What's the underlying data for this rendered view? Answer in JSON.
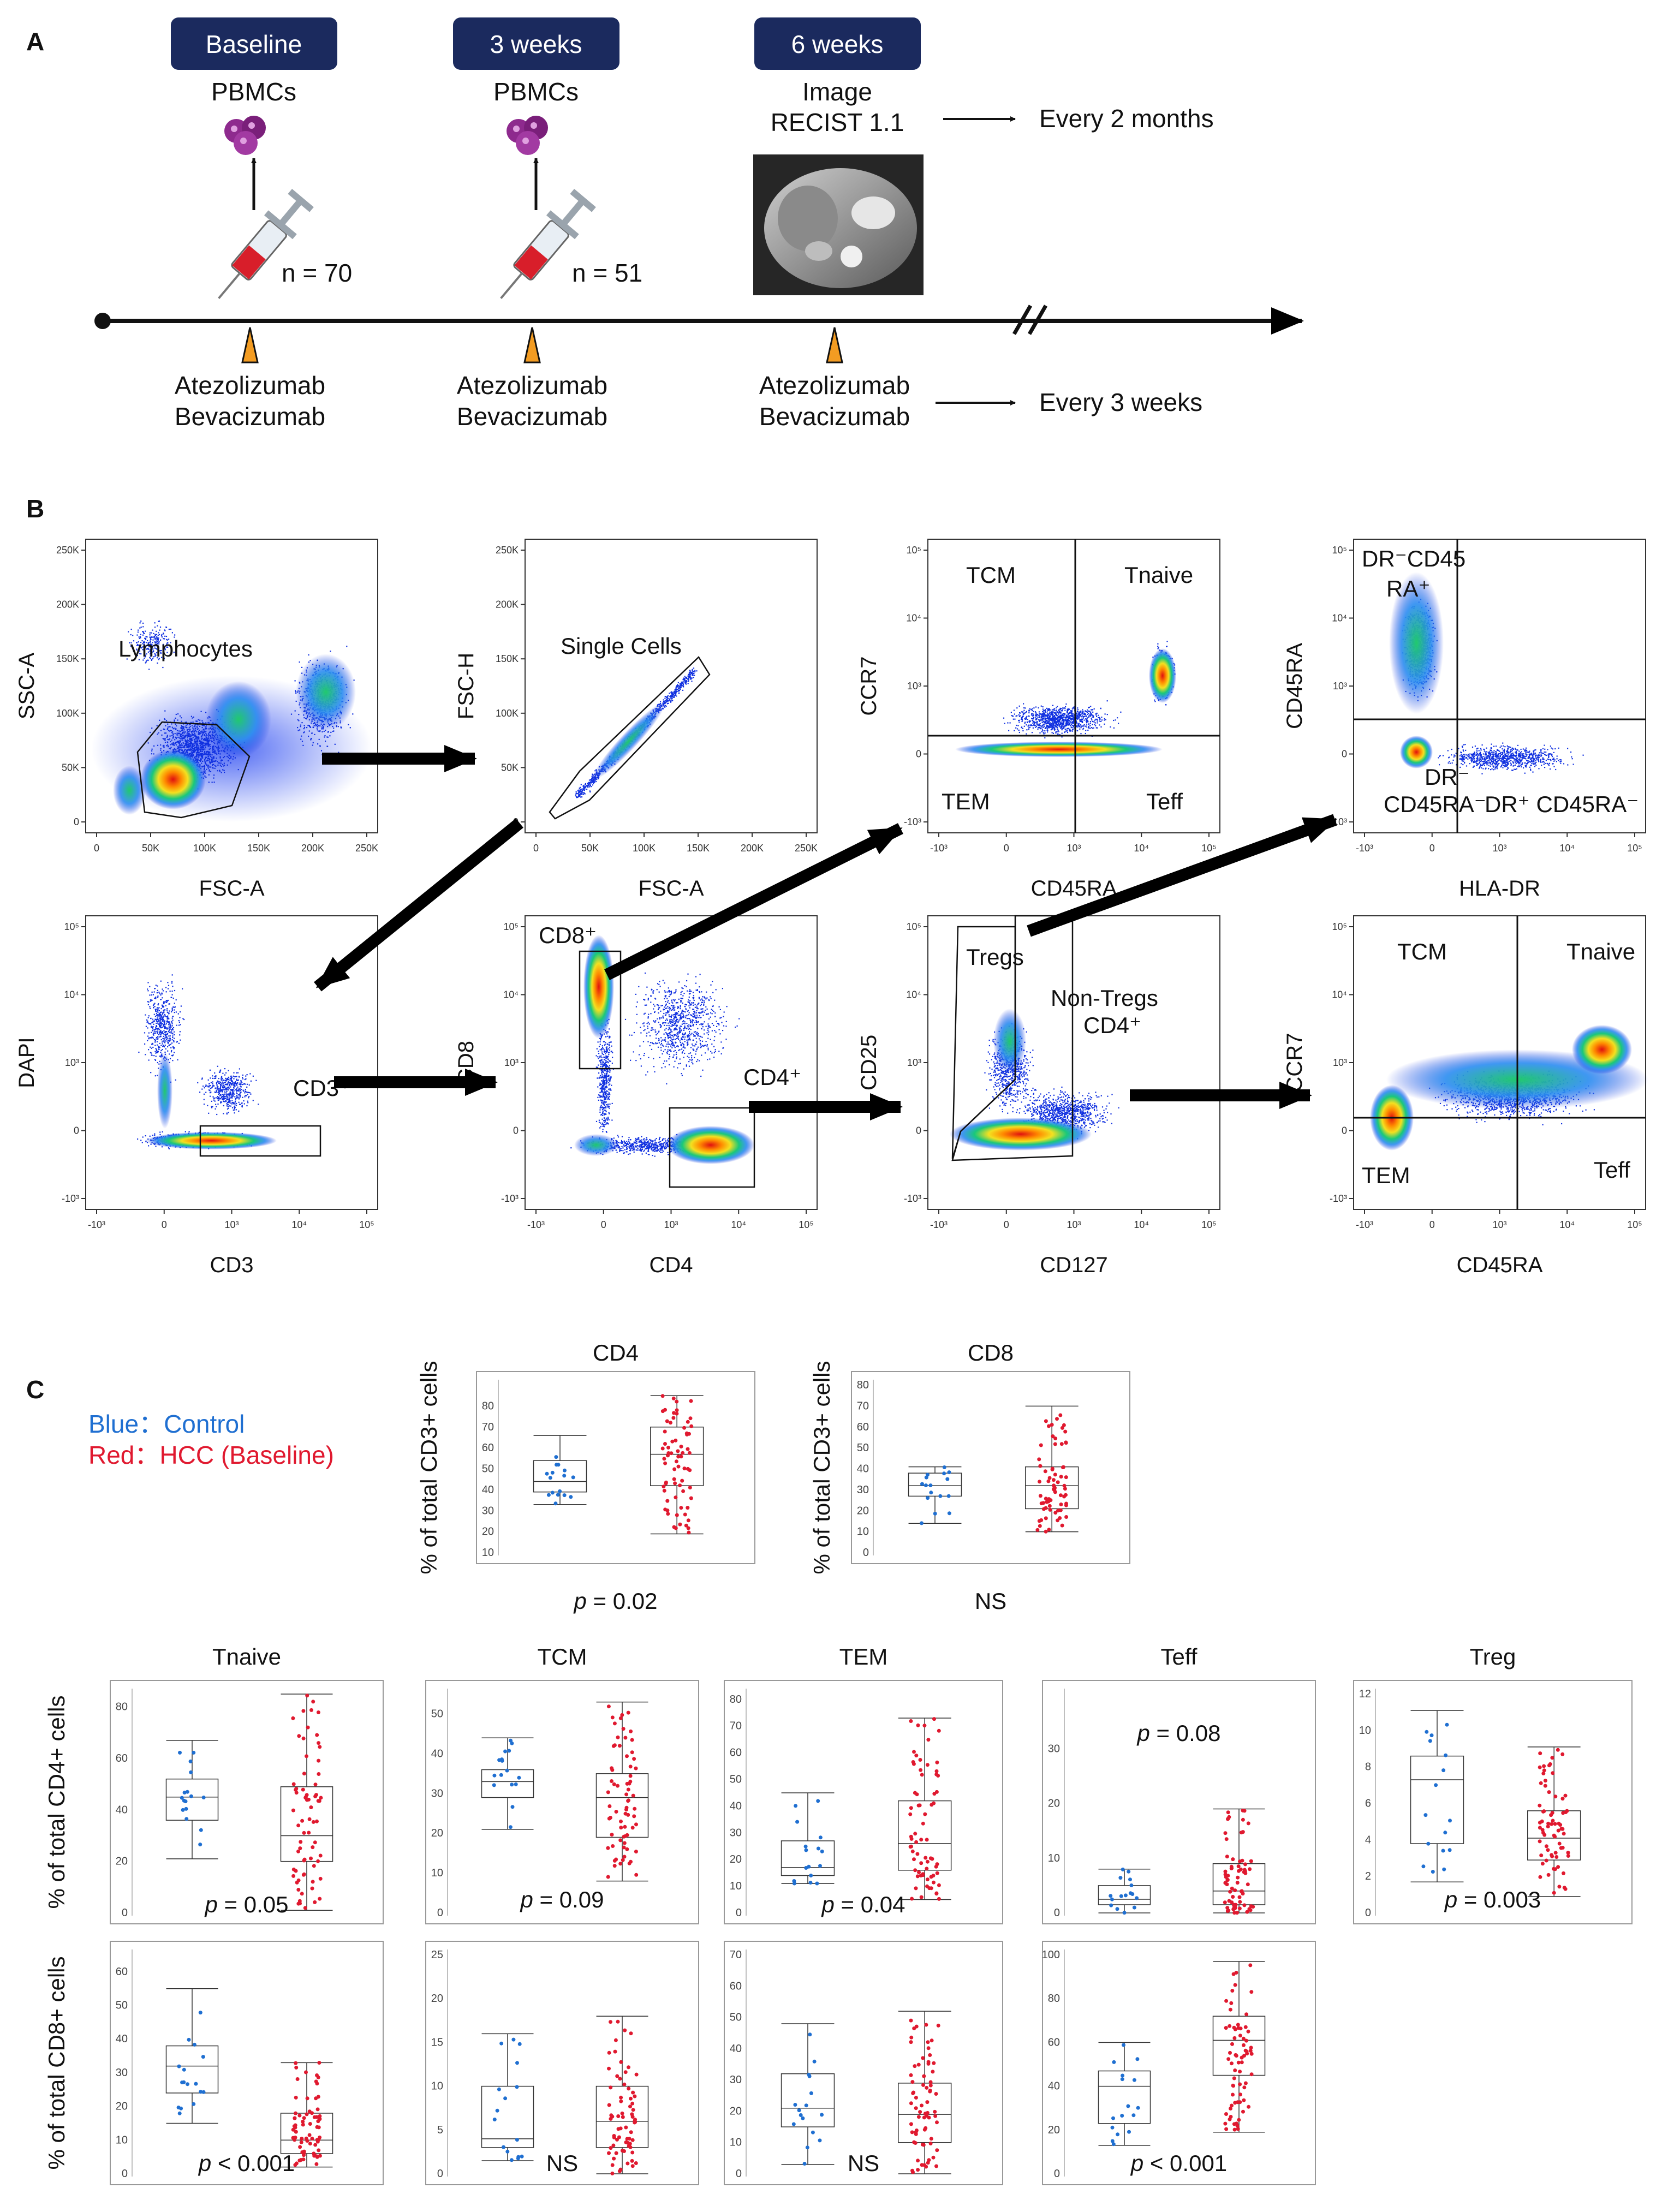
{
  "colors": {
    "navy": "#1b2a5e",
    "orange": "#f39c22",
    "control": "#1f6fd1",
    "hcc": "#e0192f",
    "flow_blue": "#1030e0"
  },
  "panel_a": {
    "letter": "A",
    "timepoints": [
      {
        "badge": "Baseline",
        "sample": "PBMCs",
        "n": "n = 70",
        "drug1": "Atezolizumab",
        "drug2": "Bevacizumab"
      },
      {
        "badge": "3 weeks",
        "sample": "PBMCs",
        "n": "n = 51",
        "drug1": "Atezolizumab",
        "drug2": "Bevacizumab"
      },
      {
        "badge": "6 weeks",
        "sample": "Image",
        "sample2": "RECIST 1.1",
        "drug1": "Atezolizumab",
        "drug2": "Bevacizumab"
      }
    ],
    "imaging_interval": "Every 2 months",
    "dosing_interval": "Every 3 weeks",
    "icons": [
      "cells-icon",
      "syringe-icon",
      "ct-scan-image",
      "triangle-marker-icon"
    ]
  },
  "panel_b": {
    "letter": "B",
    "plots": [
      {
        "x": "FSC-A",
        "y": "SSC-A",
        "gates": [
          "Lymphocytes"
        ],
        "xt": [
          "0",
          "50K",
          "100K",
          "150K",
          "200K",
          "250K"
        ],
        "yt": [
          "250K",
          "200K",
          "150K",
          "100K",
          "50K",
          "0"
        ]
      },
      {
        "x": "FSC-A",
        "y": "FSC-H",
        "gates": [
          "Single Cells"
        ],
        "xt": [
          "0",
          "50K",
          "100K",
          "150K",
          "200K",
          "250K"
        ],
        "yt": [
          "250K",
          "200K",
          "150K",
          "100K",
          "50K",
          "0"
        ]
      },
      {
        "x": "CD45RA",
        "y": "CCR7",
        "gates": [
          "TCM",
          "Tnaive",
          "TEM",
          "Teff"
        ]
      },
      {
        "x": "HLA-DR",
        "y": "CD45RA",
        "gates": [
          "DR⁻CD45",
          "RA⁺",
          "DR⁻",
          "CD45RA⁻",
          "DR⁺ CD45RA⁻"
        ]
      },
      {
        "x": "CD3",
        "y": "DAPI",
        "gates": [
          "CD3⁺"
        ]
      },
      {
        "x": "CD4",
        "y": "CD8",
        "gates": [
          "CD8⁺",
          "CD4⁺"
        ]
      },
      {
        "x": "CD127",
        "y": "CD25",
        "gates": [
          "Tregs",
          "Non-Tregs",
          "CD4⁺"
        ]
      },
      {
        "x": "CD45RA",
        "y": "CCR7",
        "gates": [
          "TCM",
          "Tnaive",
          "TEM",
          "Teff"
        ]
      }
    ],
    "log_ticks_x": [
      "-10³",
      "0",
      "10³",
      "10⁴",
      "10⁵"
    ],
    "log_ticks_y": [
      "10⁵",
      "10⁴",
      "10³",
      "0",
      "-10³"
    ]
  },
  "panel_c": {
    "letter": "C",
    "legend": [
      "Blue：Control",
      "Red：HCC (Baseline)"
    ],
    "ylabel_cd3": "% of total CD3+ cells",
    "ylabel_cd4": "% of total CD4+ cells",
    "ylabel_cd8": "% of total CD8+ cells",
    "top_titles": [
      "CD4",
      "CD8"
    ],
    "row_titles": [
      "Tnaive",
      "TCM",
      "TEM",
      "Teff",
      "Treg"
    ],
    "p_prefix": "p",
    "stats": [
      {
        "sym": "p",
        "rest": " = 0.02"
      },
      {
        "sym": "",
        "rest": "NS"
      },
      {
        "sym": "p",
        "rest": " = 0.05"
      },
      {
        "sym": "p",
        "rest": " = 0.09"
      },
      {
        "sym": "p",
        "rest": " = 0.04"
      },
      {
        "sym": "p",
        "rest": " = 0.08"
      },
      {
        "sym": "p",
        "rest": " = 0.003"
      },
      {
        "sym": "p",
        "rest": " < 0.001"
      },
      {
        "sym": "",
        "rest": "NS"
      },
      {
        "sym": "",
        "rest": "NS"
      },
      {
        "sym": "p",
        "rest": " < 0.001"
      }
    ],
    "yticks_small": [
      [
        "80",
        "70",
        "60",
        "50",
        "40",
        "30",
        "20",
        "10"
      ],
      [
        "80",
        "70",
        "60",
        "50",
        "40",
        "30",
        "20",
        "10",
        "0"
      ],
      [
        "80",
        "60",
        "40",
        "20",
        "0"
      ],
      [
        "50",
        "40",
        "30",
        "20",
        "10",
        "0"
      ],
      [
        "80",
        "70",
        "60",
        "50",
        "40",
        "30",
        "20",
        "10",
        "0"
      ],
      [
        "30",
        "20",
        "10",
        "0"
      ],
      [
        "12",
        "10",
        "8",
        "6",
        "4",
        "2",
        "0"
      ],
      [
        "60",
        "50",
        "40",
        "30",
        "20",
        "10",
        "0"
      ],
      [
        "25",
        "20",
        "15",
        "10",
        "5",
        "0"
      ],
      [
        "70",
        "60",
        "50",
        "40",
        "30",
        "20",
        "10",
        "0"
      ],
      [
        "100",
        "80",
        "60",
        "40",
        "20",
        "0"
      ]
    ]
  },
  "chart_data": [
    {
      "type": "box",
      "title": "CD4",
      "ylabel": "% of total CD3+ cells",
      "groups": [
        {
          "name": "Control",
          "min": 33,
          "q1": 39,
          "median": 44,
          "q3": 54,
          "max": 66
        },
        {
          "name": "HCC (Baseline)",
          "min": 19,
          "q1": 42,
          "median": 57,
          "q3": 70,
          "max": 85
        }
      ]
    },
    {
      "type": "box",
      "title": "CD8",
      "ylabel": "% of total CD3+ cells",
      "groups": [
        {
          "name": "Control",
          "min": 14,
          "q1": 27,
          "median": 32,
          "q3": 38,
          "max": 41
        },
        {
          "name": "HCC (Baseline)",
          "min": 10,
          "q1": 21,
          "median": 32,
          "q3": 41,
          "max": 70
        }
      ]
    },
    {
      "type": "box",
      "title": "Tnaive",
      "ylabel": "% of total CD4+ cells",
      "groups": [
        {
          "name": "Control",
          "min": 21,
          "q1": 36,
          "median": 45,
          "q3": 52,
          "max": 67
        },
        {
          "name": "HCC (Baseline)",
          "min": 1,
          "q1": 20,
          "median": 30,
          "q3": 49,
          "max": 85
        }
      ]
    },
    {
      "type": "box",
      "title": "TCM",
      "ylabel": "% of total CD4+ cells",
      "groups": [
        {
          "name": "Control",
          "min": 21,
          "q1": 29,
          "median": 33,
          "q3": 36,
          "max": 44
        },
        {
          "name": "HCC (Baseline)",
          "min": 8,
          "q1": 19,
          "median": 29,
          "q3": 35,
          "max": 53
        }
      ]
    },
    {
      "type": "box",
      "title": "TEM",
      "ylabel": "% of total CD4+ cells",
      "groups": [
        {
          "name": "Control",
          "min": 11,
          "q1": 14,
          "median": 17,
          "q3": 27,
          "max": 45
        },
        {
          "name": "HCC (Baseline)",
          "min": 5,
          "q1": 16,
          "median": 26,
          "q3": 42,
          "max": 73
        }
      ]
    },
    {
      "type": "box",
      "title": "Teff",
      "ylabel": "% of total CD4+ cells",
      "groups": [
        {
          "name": "Control",
          "min": 0,
          "q1": 1.5,
          "median": 2.5,
          "q3": 5,
          "max": 8
        },
        {
          "name": "HCC (Baseline)",
          "min": 0,
          "q1": 1.5,
          "median": 4,
          "q3": 9,
          "max": 19
        }
      ]
    },
    {
      "type": "box",
      "title": "Treg",
      "ylabel": "% of total CD4+ cells",
      "groups": [
        {
          "name": "Control",
          "min": 1.7,
          "q1": 3.8,
          "median": 7.3,
          "q3": 8.6,
          "max": 11.1
        },
        {
          "name": "HCC (Baseline)",
          "min": 0.9,
          "q1": 2.9,
          "median": 4.1,
          "q3": 5.6,
          "max": 9.1
        }
      ]
    },
    {
      "type": "box",
      "title": "Tnaive CD8",
      "ylabel": "% of total CD8+ cells",
      "groups": [
        {
          "name": "Control",
          "min": 15,
          "q1": 24,
          "median": 32,
          "q3": 38,
          "max": 55
        },
        {
          "name": "HCC (Baseline)",
          "min": 2,
          "q1": 6,
          "median": 10,
          "q3": 18,
          "max": 33
        }
      ]
    },
    {
      "type": "box",
      "title": "TCM CD8",
      "ylabel": "% of total CD8+ cells",
      "groups": [
        {
          "name": "Control",
          "min": 1.5,
          "q1": 3,
          "median": 4,
          "q3": 10,
          "max": 16
        },
        {
          "name": "HCC (Baseline)",
          "min": 0,
          "q1": 3,
          "median": 6,
          "q3": 10,
          "max": 18
        }
      ]
    },
    {
      "type": "box",
      "title": "TEM CD8",
      "ylabel": "% of total CD8+ cells",
      "groups": [
        {
          "name": "Control",
          "min": 3,
          "q1": 15,
          "median": 21,
          "q3": 32,
          "max": 48
        },
        {
          "name": "HCC (Baseline)",
          "min": 0,
          "q1": 10,
          "median": 19,
          "q3": 29,
          "max": 52
        }
      ]
    },
    {
      "type": "box",
      "title": "Teff CD8",
      "ylabel": "% of total CD8+ cells",
      "groups": [
        {
          "name": "Control",
          "min": 13,
          "q1": 23,
          "median": 40,
          "q3": 47,
          "max": 60
        },
        {
          "name": "HCC (Baseline)",
          "min": 19,
          "q1": 45,
          "median": 61,
          "q3": 72,
          "max": 97
        }
      ]
    }
  ]
}
